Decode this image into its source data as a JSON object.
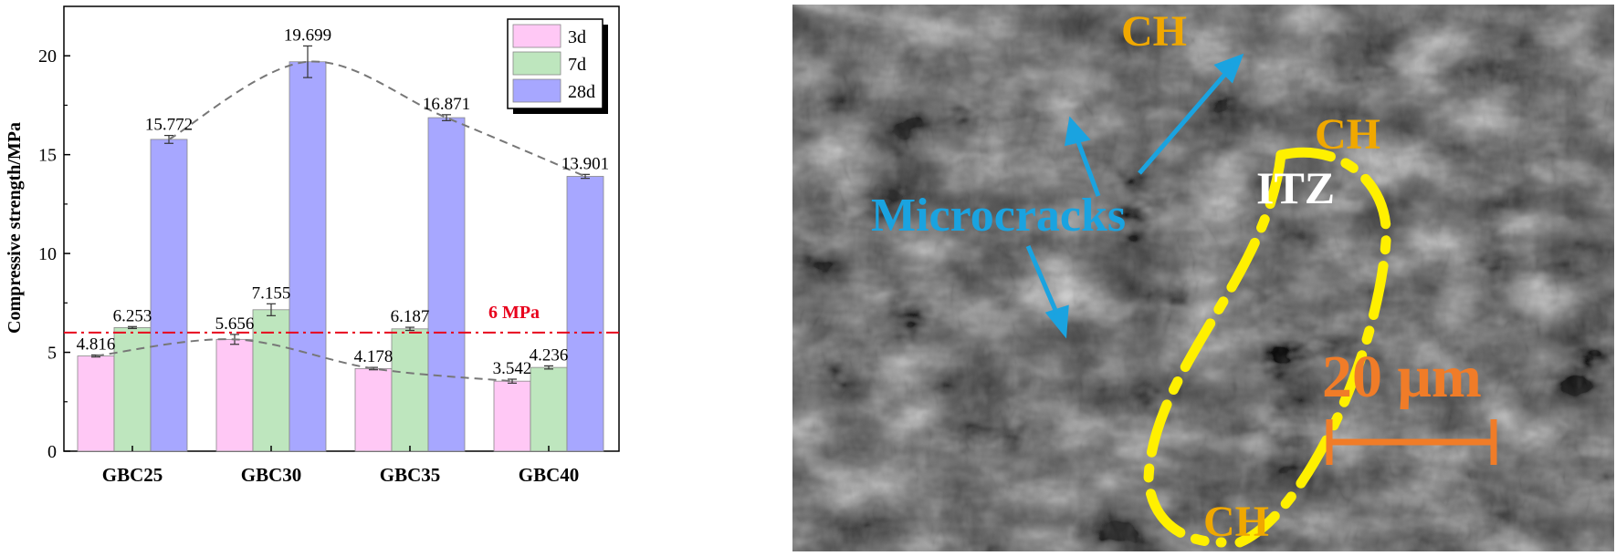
{
  "chart_data": {
    "type": "bar",
    "categories": [
      "GBC25",
      "GBC30",
      "GBC35",
      "GBC40"
    ],
    "series": [
      {
        "name": "3d",
        "values": [
          4.816,
          5.656,
          4.178,
          3.542
        ],
        "errors": [
          0.05,
          0.25,
          0.06,
          0.1
        ],
        "color": "#FFC8F5"
      },
      {
        "name": "7d",
        "values": [
          6.253,
          7.155,
          6.187,
          4.236
        ],
        "errors": [
          0.05,
          0.3,
          0.08,
          0.08
        ],
        "color": "#BEE6BE"
      },
      {
        "name": "28d",
        "values": [
          15.772,
          19.699,
          16.871,
          13.901
        ],
        "errors": [
          0.2,
          0.8,
          0.15,
          0.1
        ],
        "color": "#A7A7FF"
      }
    ],
    "data_labels": {
      "3d": [
        "4.816",
        "5.656",
        "4.178",
        "3.542"
      ],
      "7d": [
        "6.253",
        "7.155",
        "6.187",
        "4.236"
      ],
      "28d": [
        "15.772",
        "19.699",
        "16.871",
        "13.901"
      ]
    },
    "title": "",
    "xlabel": "",
    "ylabel": "Compressive strength/MPa",
    "ylim": [
      0,
      22.5
    ],
    "yticks": [
      0,
      5,
      10,
      15,
      20
    ],
    "grid": false,
    "legend_position": "top-right",
    "reference_line": {
      "value": 6,
      "label": "6 MPa",
      "color": "#E8001C"
    },
    "trend_lines": [
      "3d",
      "28d"
    ]
  },
  "sem_image": {
    "labels": {
      "ch_top": "CH",
      "ch_right": "CH",
      "ch_bottom": "CH",
      "itz": "ITZ",
      "microcracks": "Microcracks",
      "scale_bar": "20 μm"
    },
    "colors": {
      "ch": "#F0A800",
      "microcracks": "#1AA3E0",
      "itz": "#FFFFFF",
      "scale_bar": "#F07C28",
      "itz_outline": "#FFF000"
    }
  }
}
